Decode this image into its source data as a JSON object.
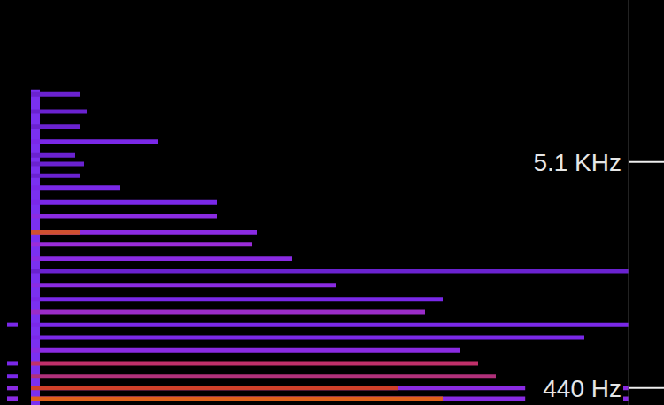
{
  "chart_data": {
    "type": "spectrogram",
    "xlim": [
      0,
      71
    ],
    "ylim": [
      90,
      8440
    ],
    "yticks": [
      {
        "value": 440,
        "label": "440 Hz"
      },
      {
        "value": 5100,
        "label": "5.1 KHz"
      }
    ],
    "tick_labels": "y",
    "grid": false,
    "onset": {
      "time": 4,
      "low": 90,
      "high": 6600,
      "color": "#7a30f0"
    },
    "partials": [
      {
        "frequency": 220,
        "start": 3.5,
        "end": 71,
        "color": "#8a2be2"
      },
      {
        "frequency": 220,
        "start": 3.5,
        "end": 50,
        "color": "#e0601a"
      },
      {
        "frequency": 440,
        "start": 3.5,
        "end": 71,
        "color": "#8a2be2"
      },
      {
        "frequency": 440,
        "start": 3.5,
        "end": 45,
        "color": "#d0402a"
      },
      {
        "frequency": 680,
        "start": 3.5,
        "end": 56,
        "color": "#b0307a"
      },
      {
        "frequency": 950,
        "start": 3.5,
        "end": 54,
        "color": "#c0306a"
      },
      {
        "frequency": 1220,
        "start": 3.5,
        "end": 52,
        "color": "#8a2be2"
      },
      {
        "frequency": 1480,
        "start": 3.5,
        "end": 66,
        "color": "#7a28e8"
      },
      {
        "frequency": 1750,
        "start": 3.5,
        "end": 71,
        "color": "#7a28e8"
      },
      {
        "frequency": 2010,
        "start": 3.5,
        "end": 48,
        "color": "#9a2cc8"
      },
      {
        "frequency": 2270,
        "start": 3.5,
        "end": 50,
        "color": "#7a28e8"
      },
      {
        "frequency": 2560,
        "start": 3.5,
        "end": 38,
        "color": "#8a2be2"
      },
      {
        "frequency": 2850,
        "start": 3.5,
        "end": 71,
        "color": "#6a22d0"
      },
      {
        "frequency": 3110,
        "start": 3.5,
        "end": 33,
        "color": "#8a2be2"
      },
      {
        "frequency": 3400,
        "start": 3.5,
        "end": 28.5,
        "color": "#9a2cd8"
      },
      {
        "frequency": 3650,
        "start": 3.5,
        "end": 29,
        "color": "#8a2be2"
      },
      {
        "frequency": 3650,
        "start": 3.5,
        "end": 9,
        "color": "#d05030"
      },
      {
        "frequency": 3980,
        "start": 3.5,
        "end": 24.5,
        "color": "#8a2be2"
      },
      {
        "frequency": 4270,
        "start": 3.5,
        "end": 24.5,
        "color": "#7a28e8"
      },
      {
        "frequency": 4570,
        "start": 3.5,
        "end": 13.5,
        "color": "#7a28e8"
      },
      {
        "frequency": 4820,
        "start": 3.5,
        "end": 9,
        "color": "#6a22d0"
      },
      {
        "frequency": 5060,
        "start": 3.5,
        "end": 9.5,
        "color": "#6a22d0"
      },
      {
        "frequency": 5240,
        "start": 3.5,
        "end": 8.5,
        "color": "#6a22d0"
      },
      {
        "frequency": 5520,
        "start": 3.5,
        "end": 17.8,
        "color": "#7a28e8"
      },
      {
        "frequency": 5830,
        "start": 3.5,
        "end": 9,
        "color": "#6a22d0"
      },
      {
        "frequency": 6140,
        "start": 3.5,
        "end": 9.8,
        "color": "#6a22d0"
      },
      {
        "frequency": 6500,
        "start": 3.5,
        "end": 9,
        "color": "#6a22d0"
      },
      {
        "frequency": 220,
        "start": 0.8,
        "end": 2,
        "color": "#8a2be2"
      },
      {
        "frequency": 440,
        "start": 0.8,
        "end": 2,
        "color": "#8a2be2"
      },
      {
        "frequency": 680,
        "start": 0.8,
        "end": 2,
        "color": "#7a28e8"
      },
      {
        "frequency": 950,
        "start": 0.8,
        "end": 2,
        "color": "#7a28e8"
      },
      {
        "frequency": 1750,
        "start": 0.8,
        "end": 2,
        "color": "#7a28e8"
      }
    ]
  }
}
